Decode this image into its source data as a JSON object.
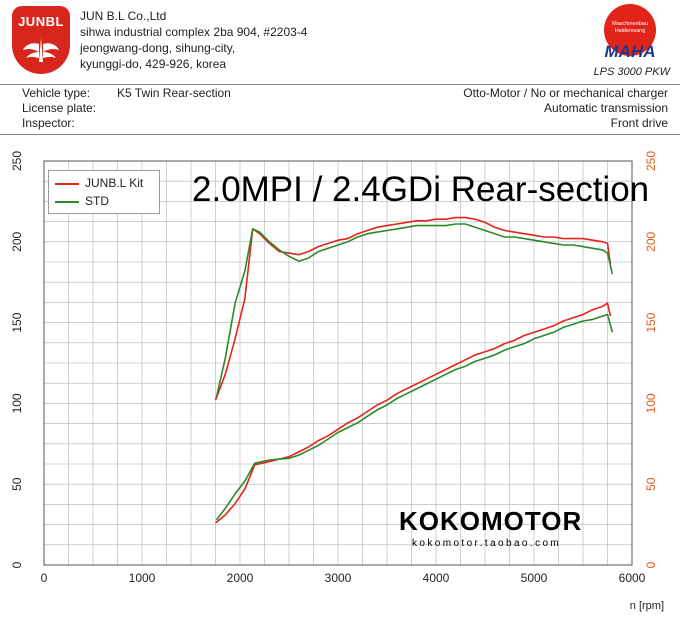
{
  "header": {
    "logo_text": "JUNBL",
    "company": {
      "name": "JUN B.L Co.,Ltd",
      "address_line1": "sihwa industrial complex 2ba 904, #2203-4",
      "address_line2": "jeongwang-dong, sihung-city,",
      "address_line3": "kyunggi-do, 429-926, korea"
    },
    "maha": {
      "seal_top": "Maschinenbau",
      "seal_bottom": "Haldenwang",
      "word": "MAHA",
      "model": "LPS 3000 PKW"
    }
  },
  "info": {
    "vehicle_type_label": "Vehicle type:",
    "vehicle_type_value": "K5 Twin Rear-section",
    "license_plate_label": "License plate:",
    "inspector_label": "Inspector:",
    "engine": "Otto-Motor / No or mechanical charger",
    "transmission": "Automatic transmission",
    "drive": "Front drive"
  },
  "overlay": {
    "headline": "2.0MPI / 2.4GDi Rear-section",
    "brand": "KOKOMOTOR",
    "brand_sub": "kokomotor.taobao.com"
  },
  "colors": {
    "kit": "#e8231a",
    "std": "#2a8a2a",
    "grid": "#b0b0b0",
    "right_axis": "#e05a1a"
  },
  "chart_data": {
    "type": "line",
    "xlabel": "n [rpm]",
    "xlim": [
      0,
      6000
    ],
    "ylim": [
      0,
      250
    ],
    "x_ticks": [
      0,
      1000,
      2000,
      3000,
      4000,
      5000,
      6000
    ],
    "y_ticks_left": [
      0,
      50,
      100,
      150,
      200,
      250
    ],
    "y_ticks_right": [
      0,
      50,
      100,
      150,
      200,
      250
    ],
    "legend_position": "top-left",
    "series": [
      {
        "name": "JUNB.L Kit",
        "key": "kit_upper",
        "points": [
          [
            1750,
            102
          ],
          [
            1850,
            118
          ],
          [
            1950,
            140
          ],
          [
            2050,
            165
          ],
          [
            2130,
            208
          ],
          [
            2200,
            205
          ],
          [
            2300,
            199
          ],
          [
            2400,
            194
          ],
          [
            2500,
            193
          ],
          [
            2600,
            192
          ],
          [
            2700,
            194
          ],
          [
            2800,
            197
          ],
          [
            2900,
            199
          ],
          [
            3000,
            201
          ],
          [
            3100,
            202
          ],
          [
            3200,
            205
          ],
          [
            3300,
            207
          ],
          [
            3400,
            209
          ],
          [
            3500,
            210
          ],
          [
            3600,
            211
          ],
          [
            3700,
            212
          ],
          [
            3800,
            213
          ],
          [
            3900,
            213
          ],
          [
            4000,
            214
          ],
          [
            4100,
            214
          ],
          [
            4200,
            215
          ],
          [
            4300,
            215
          ],
          [
            4400,
            214
          ],
          [
            4500,
            212
          ],
          [
            4600,
            209
          ],
          [
            4700,
            207
          ],
          [
            4800,
            206
          ],
          [
            4900,
            205
          ],
          [
            5000,
            204
          ],
          [
            5100,
            203
          ],
          [
            5200,
            203
          ],
          [
            5300,
            202
          ],
          [
            5400,
            202
          ],
          [
            5500,
            202
          ],
          [
            5600,
            201
          ],
          [
            5700,
            200
          ],
          [
            5750,
            199
          ],
          [
            5780,
            186
          ]
        ]
      },
      {
        "name": "STD",
        "key": "std_upper",
        "points": [
          [
            1760,
            104
          ],
          [
            1850,
            128
          ],
          [
            1950,
            162
          ],
          [
            2050,
            182
          ],
          [
            2130,
            208
          ],
          [
            2200,
            206
          ],
          [
            2300,
            200
          ],
          [
            2400,
            195
          ],
          [
            2500,
            191
          ],
          [
            2600,
            188
          ],
          [
            2700,
            190
          ],
          [
            2800,
            194
          ],
          [
            2900,
            196
          ],
          [
            3000,
            198
          ],
          [
            3100,
            200
          ],
          [
            3200,
            203
          ],
          [
            3300,
            205
          ],
          [
            3400,
            206
          ],
          [
            3500,
            207
          ],
          [
            3600,
            208
          ],
          [
            3700,
            209
          ],
          [
            3800,
            210
          ],
          [
            3900,
            210
          ],
          [
            4000,
            210
          ],
          [
            4100,
            210
          ],
          [
            4200,
            211
          ],
          [
            4300,
            211
          ],
          [
            4400,
            209
          ],
          [
            4500,
            207
          ],
          [
            4600,
            205
          ],
          [
            4700,
            203
          ],
          [
            4800,
            203
          ],
          [
            4900,
            202
          ],
          [
            5000,
            201
          ],
          [
            5100,
            200
          ],
          [
            5200,
            199
          ],
          [
            5300,
            198
          ],
          [
            5400,
            198
          ],
          [
            5500,
            197
          ],
          [
            5600,
            196
          ],
          [
            5700,
            195
          ],
          [
            5750,
            193
          ],
          [
            5800,
            180
          ]
        ]
      },
      {
        "name": "JUNB.L Kit",
        "key": "kit_lower",
        "points": [
          [
            1750,
            26
          ],
          [
            1850,
            31
          ],
          [
            1950,
            38
          ],
          [
            2050,
            47
          ],
          [
            2150,
            62
          ],
          [
            2300,
            64
          ],
          [
            2500,
            67
          ],
          [
            2600,
            70
          ],
          [
            2700,
            73
          ],
          [
            2800,
            77
          ],
          [
            2900,
            80
          ],
          [
            3000,
            84
          ],
          [
            3100,
            88
          ],
          [
            3200,
            91
          ],
          [
            3300,
            95
          ],
          [
            3400,
            99
          ],
          [
            3500,
            102
          ],
          [
            3600,
            106
          ],
          [
            3700,
            109
          ],
          [
            3800,
            112
          ],
          [
            3900,
            115
          ],
          [
            4000,
            118
          ],
          [
            4100,
            121
          ],
          [
            4200,
            124
          ],
          [
            4300,
            127
          ],
          [
            4400,
            130
          ],
          [
            4500,
            132
          ],
          [
            4600,
            134
          ],
          [
            4700,
            137
          ],
          [
            4800,
            139
          ],
          [
            4900,
            142
          ],
          [
            5000,
            144
          ],
          [
            5100,
            146
          ],
          [
            5200,
            148
          ],
          [
            5300,
            151
          ],
          [
            5400,
            153
          ],
          [
            5500,
            155
          ],
          [
            5600,
            158
          ],
          [
            5700,
            160
          ],
          [
            5750,
            162
          ],
          [
            5780,
            154
          ]
        ]
      },
      {
        "name": "STD",
        "key": "std_lower",
        "points": [
          [
            1760,
            28
          ],
          [
            1850,
            35
          ],
          [
            1950,
            44
          ],
          [
            2050,
            52
          ],
          [
            2150,
            63
          ],
          [
            2300,
            65
          ],
          [
            2500,
            66
          ],
          [
            2600,
            68
          ],
          [
            2700,
            71
          ],
          [
            2800,
            74
          ],
          [
            2900,
            78
          ],
          [
            3000,
            82
          ],
          [
            3100,
            85
          ],
          [
            3200,
            88
          ],
          [
            3300,
            92
          ],
          [
            3400,
            96
          ],
          [
            3500,
            99
          ],
          [
            3600,
            103
          ],
          [
            3700,
            106
          ],
          [
            3800,
            109
          ],
          [
            3900,
            112
          ],
          [
            4000,
            115
          ],
          [
            4100,
            118
          ],
          [
            4200,
            121
          ],
          [
            4300,
            123
          ],
          [
            4400,
            126
          ],
          [
            4500,
            128
          ],
          [
            4600,
            130
          ],
          [
            4700,
            133
          ],
          [
            4800,
            135
          ],
          [
            4900,
            137
          ],
          [
            5000,
            140
          ],
          [
            5100,
            142
          ],
          [
            5200,
            144
          ],
          [
            5300,
            147
          ],
          [
            5400,
            149
          ],
          [
            5500,
            151
          ],
          [
            5600,
            152
          ],
          [
            5700,
            154
          ],
          [
            5750,
            155
          ],
          [
            5800,
            144
          ]
        ]
      }
    ]
  }
}
